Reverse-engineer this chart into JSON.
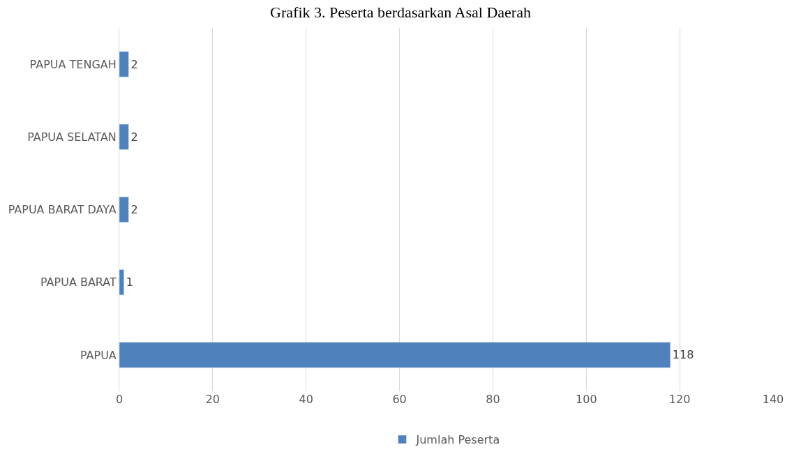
{
  "chart_data": {
    "type": "bar",
    "orientation": "horizontal",
    "title": "Grafik 3. Peserta berdasarkan Asal Daerah",
    "categories": [
      "PAPUA TENGAH",
      "PAPUA SELATAN",
      "PAPUA BARAT DAYA",
      "PAPUA BARAT",
      "PAPUA"
    ],
    "series": [
      {
        "name": "Jumlah Peserta",
        "color": "#4f81bd",
        "values": [
          2,
          2,
          2,
          1,
          118
        ]
      }
    ],
    "xlim": [
      0,
      140
    ],
    "xticks": [
      0,
      20,
      40,
      60,
      80,
      100,
      120,
      140
    ],
    "grid": "x",
    "legend": "bottom",
    "data_labels": true
  }
}
